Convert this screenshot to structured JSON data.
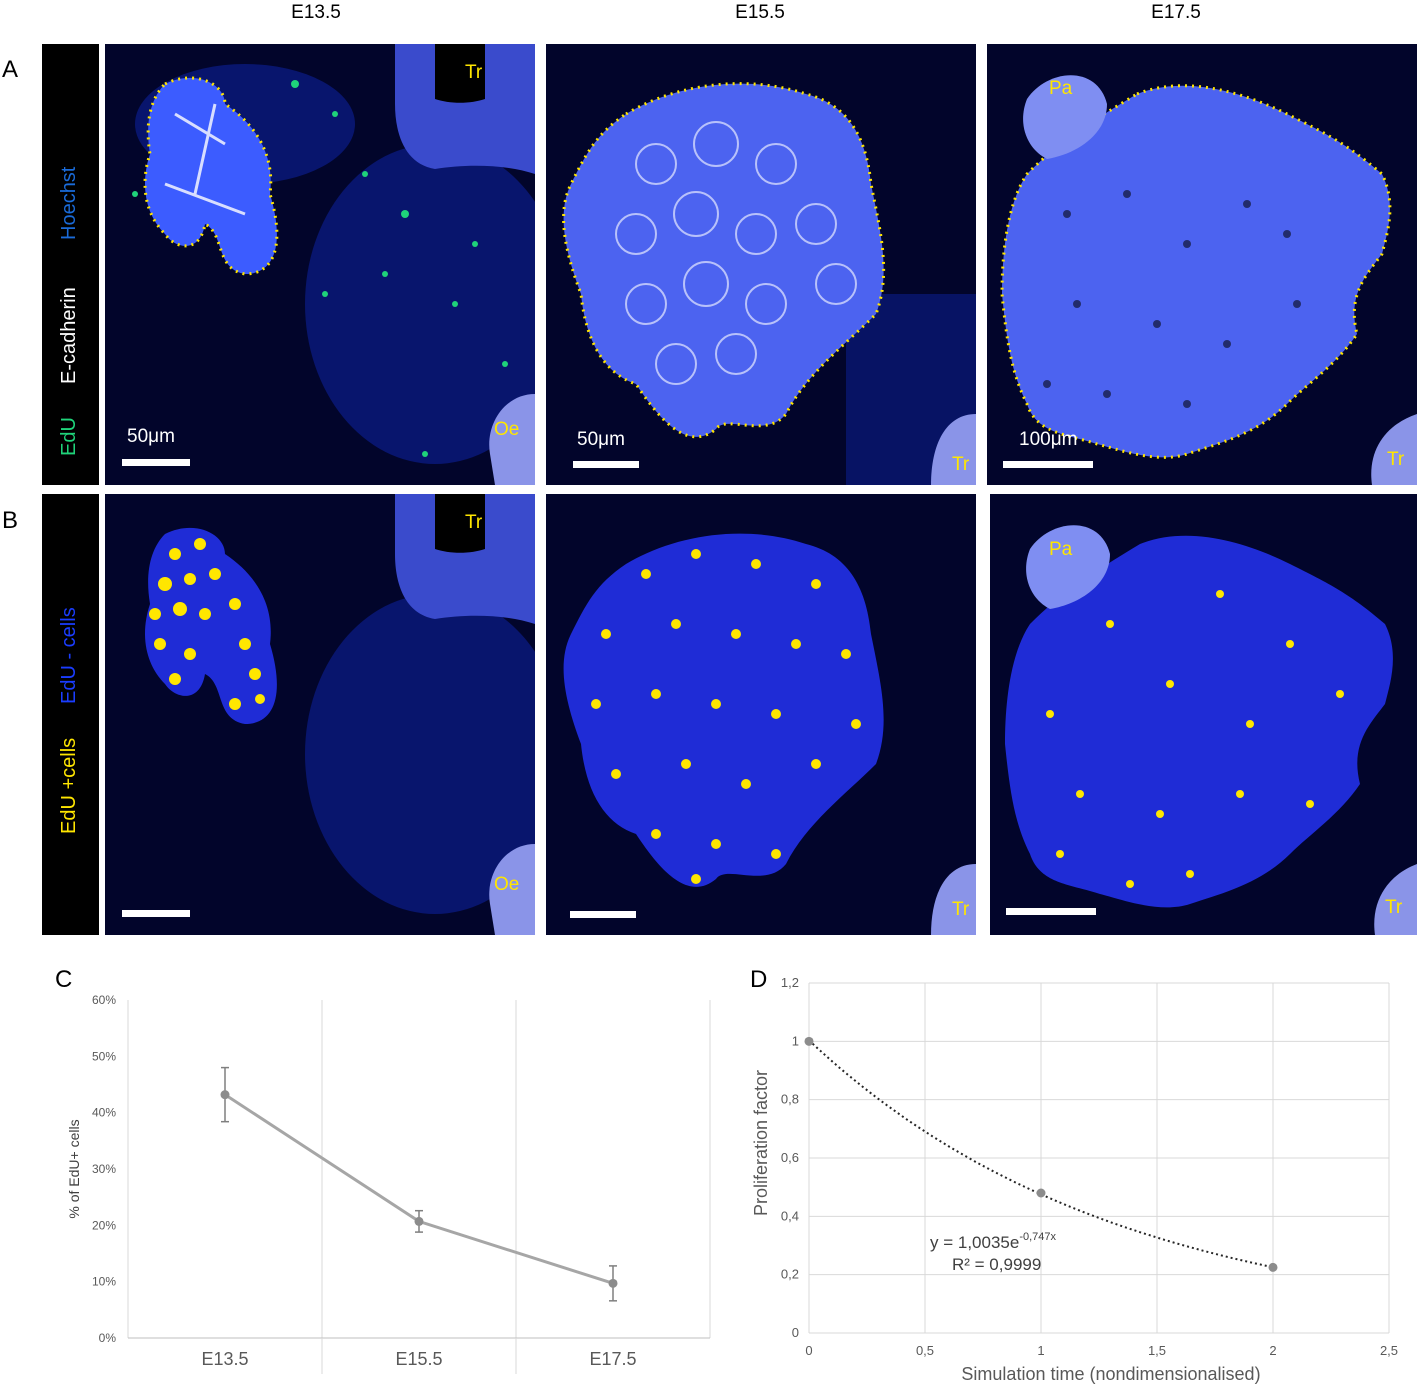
{
  "columns": [
    "E13.5",
    "E15.5",
    "E17.5"
  ],
  "panel_letters": {
    "A": "A",
    "B": "B",
    "C": "C",
    "D": "D"
  },
  "legend_a": {
    "edu": "EdU",
    "ecad": "E-cadherin",
    "hoechst": "Hoechst"
  },
  "legend_b": {
    "pos": "EdU +cells",
    "neg": "EdU - cells"
  },
  "labels": {
    "tr": "Tr",
    "oe": "Oe",
    "pa": "Pa"
  },
  "scale_labels": {
    "s50a": "50μm",
    "s50b": "50μm",
    "s100": "100μm"
  },
  "colors": {
    "edu": "#1fd37a",
    "hoechst": "#1a3dff",
    "ecad": "#ffffff",
    "outline": "#ffe600",
    "line": "#a6a6a6",
    "grid": "#d9d9d9"
  },
  "chart_data": [
    {
      "type": "line",
      "panel": "C",
      "ylabel": "% of EdU+ cells",
      "categories": [
        "E13.5",
        "E15.5",
        "E17.5"
      ],
      "yticks": [
        "0%",
        "10%",
        "20%",
        "30%",
        "40%",
        "50%",
        "60%"
      ],
      "ylim": [
        0,
        60
      ],
      "series": [
        {
          "values": [
            43.2,
            20.7,
            9.7
          ],
          "error": [
            4.8,
            1.9,
            3.1
          ]
        }
      ],
      "grid": "vertical"
    },
    {
      "type": "scatter",
      "panel": "D",
      "xlabel": "Simulation time (nondimensionalised)",
      "ylabel": "Proliferation factor",
      "xticks": [
        "0",
        "0,5",
        "1",
        "1,5",
        "2",
        "2,5"
      ],
      "yticks": [
        "0",
        "0,2",
        "0,4",
        "0,6",
        "0,8",
        "1",
        "1,2"
      ],
      "xlim": [
        0,
        2.5
      ],
      "ylim": [
        0,
        1.2
      ],
      "series": [
        {
          "x": [
            0,
            1,
            2
          ],
          "y": [
            1.0,
            0.48,
            0.225
          ]
        }
      ],
      "trendline": {
        "type": "exponential",
        "a": 1.0035,
        "b": -0.747
      },
      "equation": {
        "prefix": "y = 1,0035e",
        "exponent": "-0,747x",
        "r2": "R² = 0,9999"
      },
      "grid": "both"
    }
  ]
}
